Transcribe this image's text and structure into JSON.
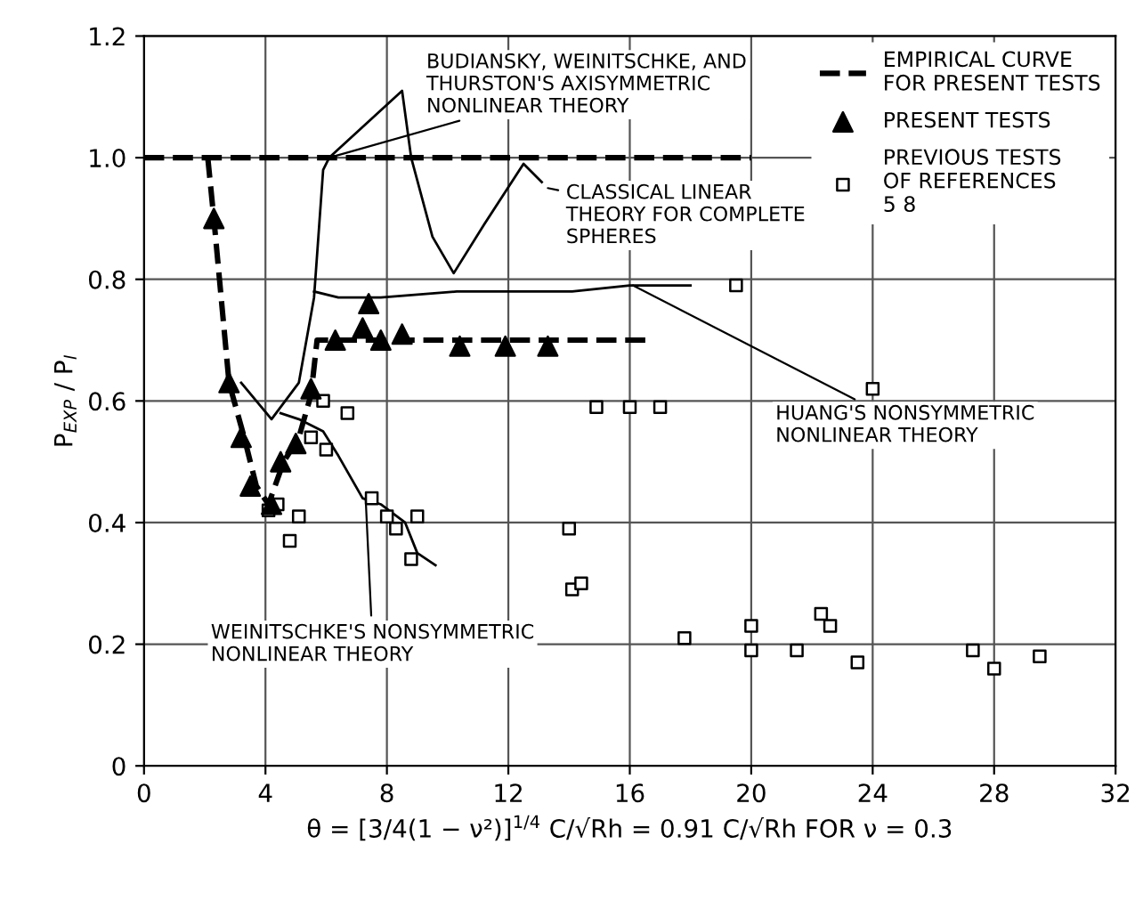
{
  "chart_data": {
    "type": "line",
    "xlabel": "θ = [3/4(1 − ν²)]$^{1/4}$ C/√Rh = 0.91 C/√Rh FOR ν = 0.3",
    "ylabel": "P$_{EXP}$ / P$_{I}$",
    "xlim": [
      0,
      32
    ],
    "xticks": [
      0,
      4,
      8,
      12,
      16,
      20,
      24,
      28,
      32
    ],
    "ylim": [
      0,
      1.2
    ],
    "yticks": [
      0,
      0.2,
      0.4,
      0.6,
      0.8,
      {
        "value": 1.0,
        "label": "1.0"
      },
      1.2
    ],
    "grid": true,
    "legend": "top right",
    "series": [
      {
        "name": "EMPIRICAL CURVE\nFOR PRESENT TESTS",
        "type": "line",
        "line_style": "dashed",
        "marker": "none",
        "color": "#000000",
        "x": [
          2.1,
          2.3,
          2.8,
          3.3,
          3.7,
          4.1,
          4.6,
          5.1,
          5.5,
          5.7,
          16.7
        ],
        "values": [
          1.0,
          0.9,
          0.63,
          0.54,
          0.46,
          0.43,
          0.5,
          0.54,
          0.61,
          0.7,
          0.7
        ]
      },
      {
        "name": "PRESENT TESTS",
        "type": "scatter",
        "marker": "triangle",
        "color": "#000000",
        "x": [
          2.3,
          2.8,
          3.2,
          3.5,
          4.2,
          4.5,
          5.0,
          5.5,
          6.3,
          7.2,
          7.4,
          7.8,
          8.5,
          10.4,
          11.9,
          13.3
        ],
        "values": [
          0.9,
          0.63,
          0.54,
          0.46,
          0.43,
          0.5,
          0.53,
          0.62,
          0.7,
          0.72,
          0.76,
          0.7,
          0.71,
          0.69,
          0.69,
          0.69
        ]
      },
      {
        "name": "PREVIOUS TESTS\nOF REFERENCES\n5 8",
        "type": "scatter",
        "marker": "square",
        "color": "#000000",
        "x": [
          5.9,
          6.7,
          14.9,
          16.0,
          17.0,
          19.5,
          24.0,
          5.5,
          6.0,
          4.1,
          4.4,
          5.1,
          4.8,
          7.5,
          8.0,
          8.3,
          9.0,
          8.8,
          14.0,
          14.1,
          14.4,
          17.8,
          20.0,
          20.0,
          21.5,
          22.3,
          22.6,
          23.5,
          27.3,
          28.0,
          29.5
        ],
        "values": [
          0.6,
          0.58,
          0.59,
          0.59,
          0.59,
          0.79,
          0.62,
          0.54,
          0.52,
          0.42,
          0.43,
          0.41,
          0.37,
          0.44,
          0.41,
          0.39,
          0.41,
          0.34,
          0.39,
          0.29,
          0.3,
          0.21,
          0.23,
          0.19,
          0.19,
          0.25,
          0.23,
          0.17,
          0.19,
          0.16,
          0.18
        ]
      },
      {
        "line_style": "dashed",
        "marker": "none",
        "color": "#000000",
        "x": [
          0,
          20.0
        ],
        "values": [
          1.0,
          1.0
        ]
      },
      {
        "line_style": "solid",
        "marker": "none",
        "color": "#000000",
        "x": [
          3.2,
          4.2,
          5.1,
          5.6,
          5.9,
          6.1,
          8.5,
          8.8,
          9.5,
          10.2,
          11.2,
          12.5,
          13.1
        ],
        "values": [
          0.63,
          0.57,
          0.63,
          0.77,
          0.98,
          1.0,
          1.11,
          1.0,
          0.87,
          0.81,
          0.89,
          0.99,
          0.96
        ]
      },
      {
        "line_style": "solid",
        "marker": "none",
        "color": "#000000",
        "x": [
          5.6,
          6.4,
          7.8,
          10.3,
          14.1,
          16.0,
          18.0
        ],
        "values": [
          0.78,
          0.77,
          0.77,
          0.78,
          0.78,
          0.79,
          0.79
        ]
      },
      {
        "line_style": "solid",
        "marker": "none",
        "color": "#000000",
        "x": [
          4.5,
          5.1,
          5.9,
          6.4,
          7.2,
          7.8,
          8.6,
          9.0,
          9.6
        ],
        "values": [
          0.58,
          0.57,
          0.55,
          0.51,
          0.44,
          0.43,
          0.4,
          0.35,
          0.33
        ]
      }
    ],
    "annotations": [
      {
        "text": "BUDIANSKY, WEINITSCHKE, AND\nTHURSTON'S AXISYMMETRIC\nNONLINEAR THEORY",
        "x": 6.1,
        "y": 1.0
      },
      {
        "text": "CLASSICAL LINEAR\nTHEORY FOR COMPLETE\nSPHERES",
        "x": 13.3,
        "y": 0.95
      },
      {
        "text": "HUANG'S NONSYMMETRIC\nNONLINEAR THEORY",
        "x": 16.1,
        "y": 0.79
      },
      {
        "text": "WEINITSCHKE'S NONSYMMETRIC\nNONLINEAR THEORY",
        "x": 7.3,
        "y": 0.44
      }
    ]
  }
}
